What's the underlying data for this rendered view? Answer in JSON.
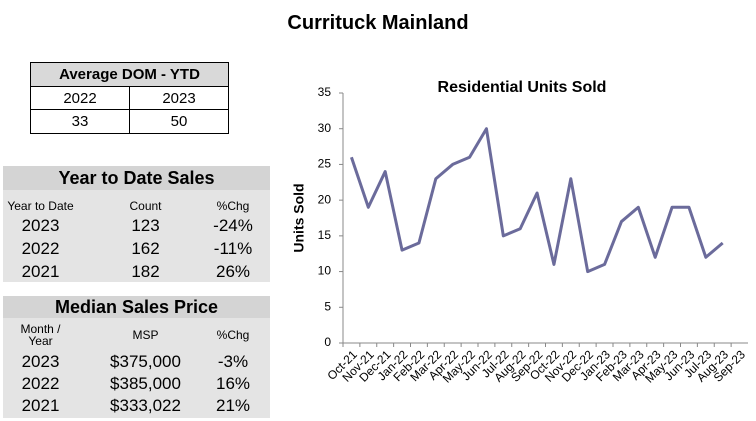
{
  "title": "Currituck Mainland",
  "dom_table": {
    "title": "Average DOM - YTD",
    "headers": [
      "2022",
      "2023"
    ],
    "values": [
      "33",
      "50"
    ]
  },
  "ytd_table": {
    "title": "Year to Date Sales",
    "headers": [
      "Year to Date",
      "Count",
      "%Chg"
    ],
    "rows": [
      [
        "2023",
        "123",
        "-24%"
      ],
      [
        "2022",
        "162",
        "-11%"
      ],
      [
        "2021",
        "182",
        "26%"
      ]
    ]
  },
  "msp_table": {
    "title": "Median Sales Price",
    "headers": [
      "Month / Year",
      "MSP",
      "%Chg"
    ],
    "rows": [
      [
        "2023",
        "$375,000",
        "-3%"
      ],
      [
        "2022",
        "$385,000",
        "16%"
      ],
      [
        "2021",
        "$333,022",
        "21%"
      ]
    ]
  },
  "chart_data": {
    "type": "line",
    "title": "Residential Units Sold",
    "y_label": "Units Sold",
    "categories": [
      "Oct-21",
      "Nov-21",
      "Dec-21",
      "Jan-22",
      "Feb-22",
      "Mar-22",
      "Apr-22",
      "May-22",
      "Jun-22",
      "Jul-22",
      "Aug-22",
      "Sep-22",
      "Oct-22",
      "Nov-22",
      "Dec-22",
      "Jan-23",
      "Feb-23",
      "Mar-23",
      "Apr-23",
      "May-23",
      "Jun-23",
      "Jul-23",
      "Aug-23",
      "Sep-23"
    ],
    "values": [
      26,
      19,
      24,
      13,
      14,
      23,
      25,
      26,
      30,
      15,
      16,
      21,
      11,
      23,
      10,
      11,
      17,
      19,
      12,
      19,
      19,
      12,
      14,
      null
    ],
    "color": "#6b6b9b",
    "ylim": [
      0,
      35
    ],
    "yticks": [
      0,
      5,
      10,
      15,
      20,
      25,
      30,
      35
    ],
    "grid": false
  }
}
